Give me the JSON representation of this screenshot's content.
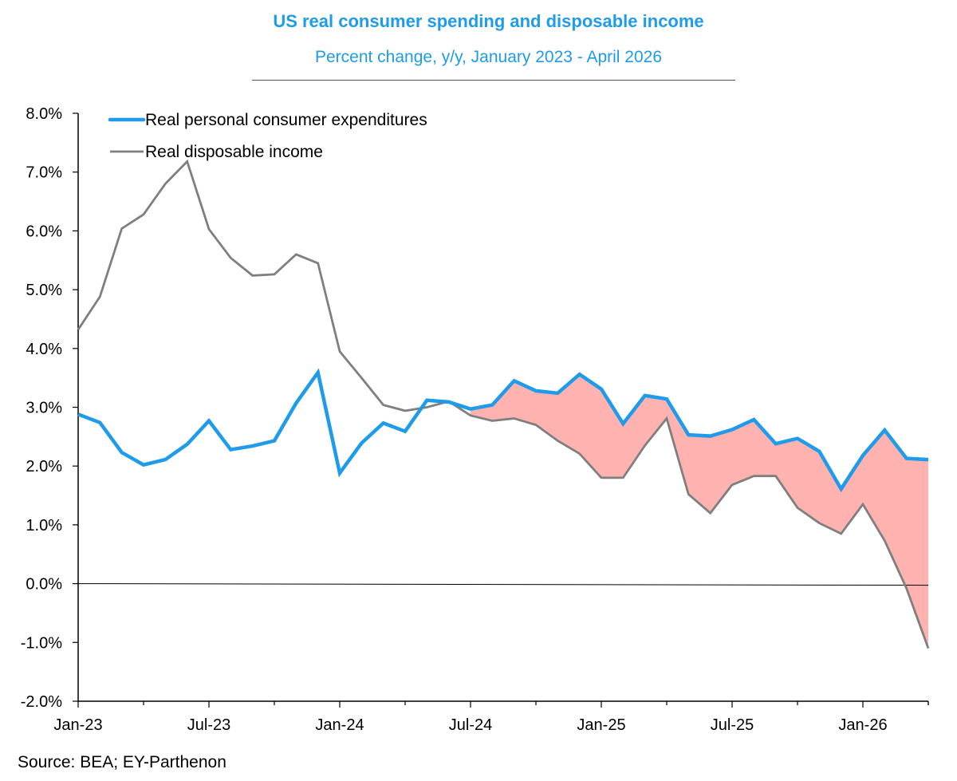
{
  "colors": {
    "title": "#1E9BEB",
    "pce": "#1E9BEB",
    "income": "#7F7F7F",
    "gap_fill": "#FFB3B0",
    "axis": "#000000"
  },
  "chart_data": {
    "type": "line",
    "title": "US real consumer spending and disposable income",
    "subtitle": "Percent change, y/y, January 2023 - April 2026",
    "ylim": [
      -2.0,
      8.0
    ],
    "y_ticks": [
      -2.0,
      -1.0,
      0.0,
      1.0,
      2.0,
      3.0,
      4.0,
      5.0,
      6.0,
      7.0,
      8.0
    ],
    "y_tick_labels": [
      "-2.0%",
      "-1.0%",
      "0.0%",
      "1.0%",
      "2.0%",
      "3.0%",
      "4.0%",
      "5.0%",
      "6.0%",
      "7.0%",
      "8.0%"
    ],
    "x_tick_labels": [
      "Jan-23",
      "Jul-23",
      "Jan-24",
      "Jul-24",
      "Jan-25",
      "Jul-25",
      "Jan-26"
    ],
    "x_tick_every": 6,
    "x_start": "Jan-23",
    "x_end": "Apr-26",
    "legend_position": "top-left",
    "shading": "area between series where income is below expenditures, from Jul-24 onward",
    "series": [
      {
        "name": "Real personal consumer expenditures",
        "values": [
          2.88,
          2.74,
          2.23,
          2.02,
          2.11,
          2.37,
          2.77,
          2.28,
          2.34,
          2.43,
          3.07,
          3.59,
          1.88,
          2.39,
          2.73,
          2.59,
          3.12,
          3.09,
          2.97,
          3.04,
          3.45,
          3.28,
          3.24,
          3.56,
          3.31,
          2.72,
          3.2,
          3.14,
          2.53,
          2.51,
          2.62,
          2.79,
          2.38,
          2.47,
          2.25,
          1.61,
          2.18,
          2.61,
          2.13,
          2.11
        ]
      },
      {
        "name": "Real disposable income",
        "values": [
          4.32,
          4.88,
          6.04,
          6.28,
          6.8,
          7.18,
          6.03,
          5.54,
          5.24,
          5.26,
          5.6,
          5.45,
          3.95,
          3.5,
          3.04,
          2.94,
          3.0,
          3.1,
          2.86,
          2.77,
          2.81,
          2.7,
          2.43,
          2.21,
          1.8,
          1.8,
          2.35,
          2.81,
          1.52,
          1.2,
          1.68,
          1.83,
          1.83,
          1.29,
          1.03,
          0.85,
          1.35,
          0.73,
          -0.08,
          -1.1
        ]
      }
    ]
  },
  "source": "Source: BEA; EY-Parthenon"
}
